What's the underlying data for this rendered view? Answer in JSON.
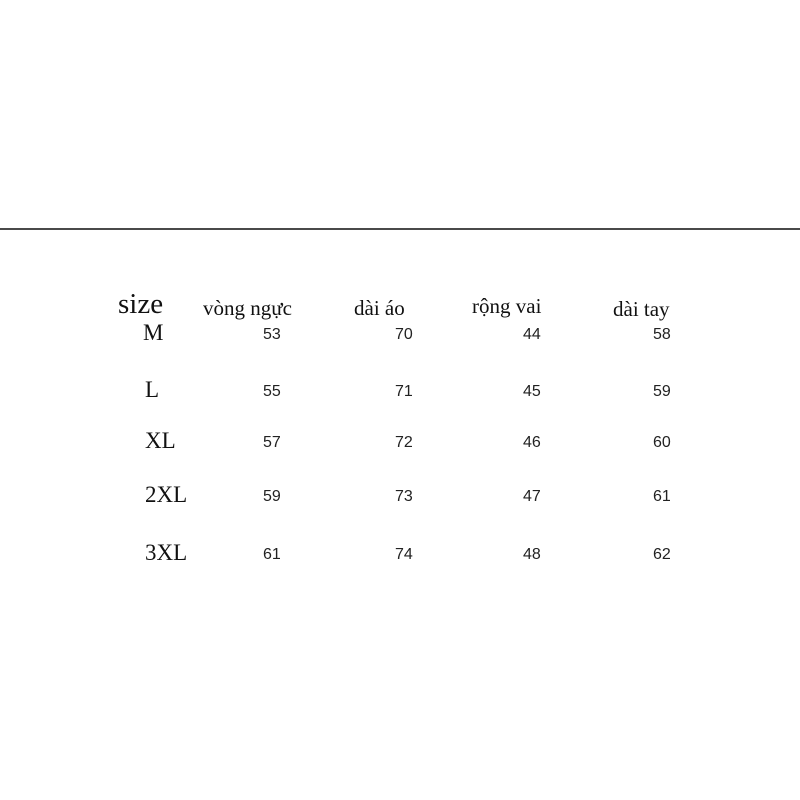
{
  "table": {
    "headers": [
      "size",
      "vòng ngực",
      "dài áo",
      "rộng vai",
      "dài tay"
    ],
    "rows": [
      {
        "size": "M",
        "values": [
          "53",
          "70",
          "44",
          "58"
        ]
      },
      {
        "size": "L",
        "values": [
          "55",
          "71",
          "45",
          "59"
        ]
      },
      {
        "size": "XL",
        "values": [
          "57",
          "72",
          "46",
          "60"
        ]
      },
      {
        "size": "2XL",
        "values": [
          "59",
          "73",
          "47",
          "61"
        ]
      },
      {
        "size": "3XL",
        "values": [
          "61",
          "74",
          "48",
          "62"
        ]
      }
    ]
  }
}
